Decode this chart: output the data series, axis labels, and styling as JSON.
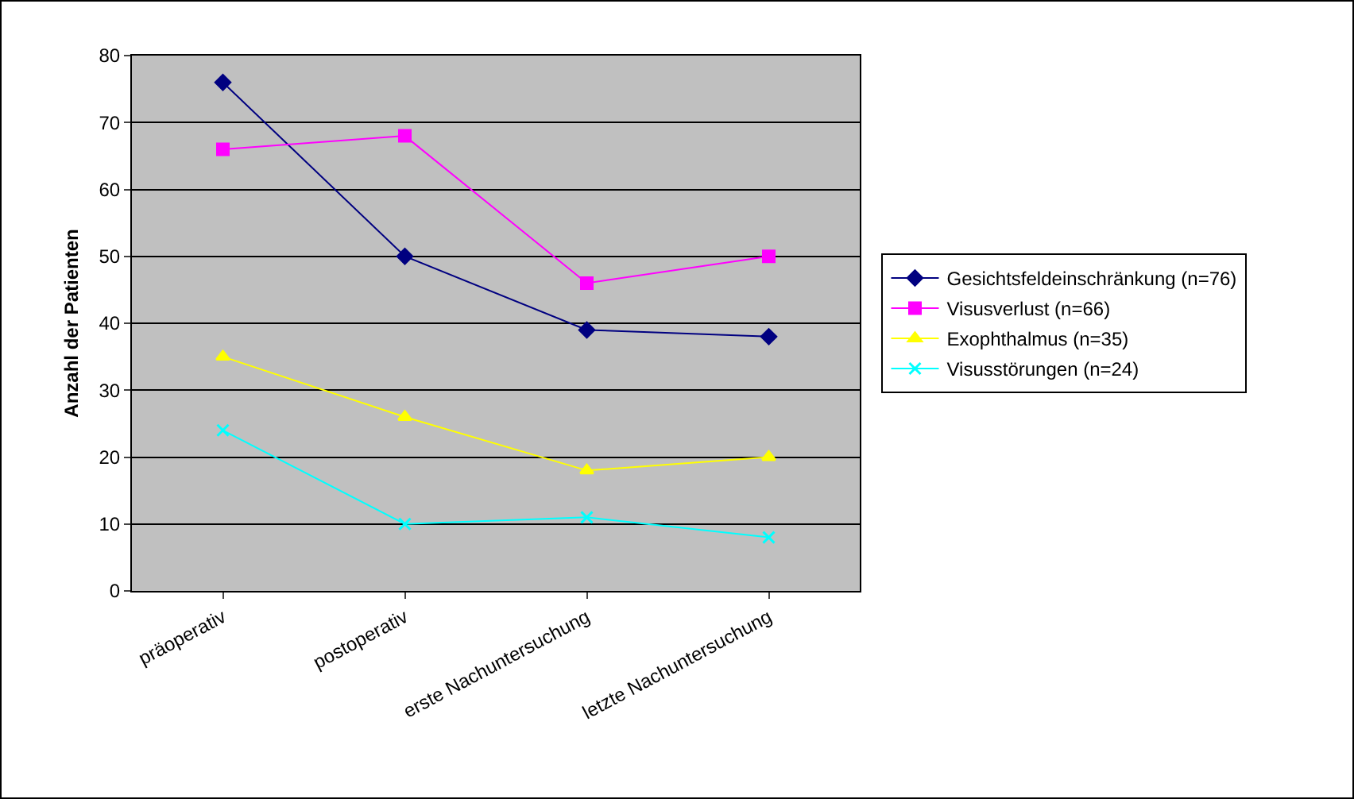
{
  "chart_data": {
    "type": "line",
    "ylabel": "Anzahl der Patienten",
    "categories": [
      "präoperativ",
      "postoperativ",
      "erste Nachuntersuchung",
      "letzte Nachuntersuchung"
    ],
    "series": [
      {
        "name": "Gesichtsfeldeinschränkung (n=76)",
        "color": "#000080",
        "marker": "diamond",
        "values": [
          76,
          50,
          39,
          38
        ]
      },
      {
        "name": "Visusverlust (n=66)",
        "color": "#ff00ff",
        "marker": "square",
        "values": [
          66,
          68,
          46,
          50
        ]
      },
      {
        "name": "Exophthalmus (n=35)",
        "color": "#ffff00",
        "marker": "triangle",
        "values": [
          35,
          26,
          18,
          20
        ]
      },
      {
        "name": "Visusstörungen (n=24)",
        "color": "#00ffff",
        "marker": "cross",
        "values": [
          24,
          10,
          11,
          8
        ]
      }
    ],
    "ylim": [
      0,
      80
    ],
    "yticks": [
      0,
      10,
      20,
      30,
      40,
      50,
      60,
      70,
      80
    ],
    "grid": "y",
    "legend": "right",
    "line_style": "solid"
  }
}
